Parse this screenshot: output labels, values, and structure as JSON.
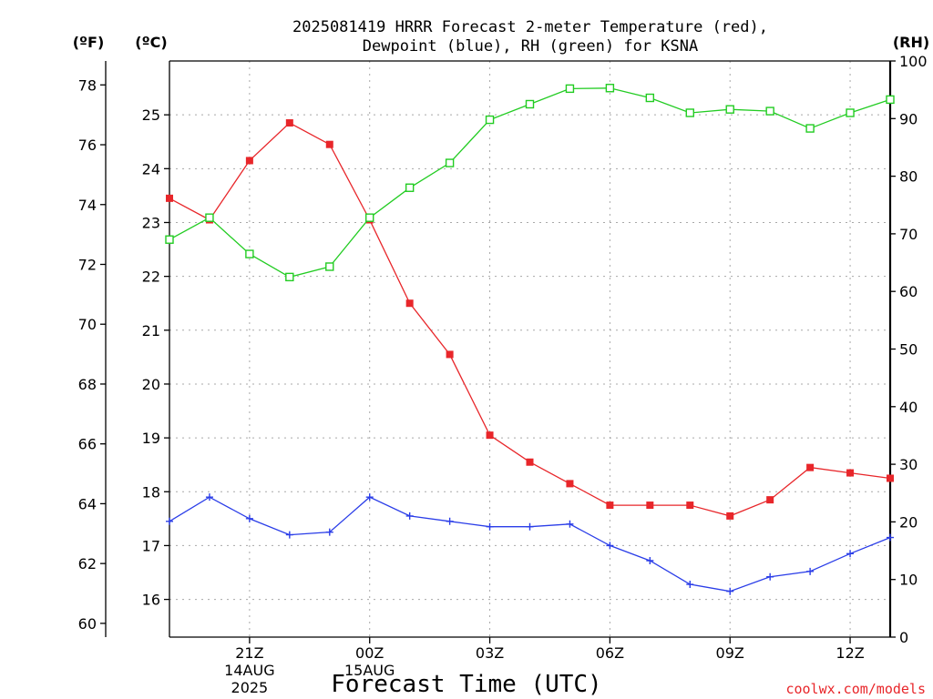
{
  "title_line1": "2025081419 HRRR Forecast 2-meter Temperature (red),",
  "title_line2": "Dewpoint (blue), RH (green) for KSNA",
  "units": {
    "fahrenheit": "(ºF)",
    "celsius": "(ºC)",
    "rh": "(RH)"
  },
  "xlabel": "Forecast Time (UTC)",
  "credit": "coolwx.com/models",
  "colors": {
    "temperature": "#e8262a",
    "dewpoint": "#2a3de8",
    "rh": "#22cc22",
    "axis": "#000000"
  },
  "chart_data": {
    "type": "line",
    "x": [
      "19Z",
      "20Z",
      "21Z",
      "22Z",
      "23Z",
      "00Z",
      "01Z",
      "02Z",
      "03Z",
      "04Z",
      "05Z",
      "06Z",
      "07Z",
      "08Z",
      "09Z",
      "10Z",
      "11Z",
      "12Z",
      "13Z"
    ],
    "x_ticks": [
      {
        "label": "21Z",
        "index": 2,
        "sub": [
          "14AUG",
          "2025"
        ]
      },
      {
        "label": "00Z",
        "index": 5,
        "sub": [
          "15AUG"
        ]
      },
      {
        "label": "03Z",
        "index": 8,
        "sub": []
      },
      {
        "label": "06Z",
        "index": 11,
        "sub": []
      },
      {
        "label": "09Z",
        "index": 14,
        "sub": []
      },
      {
        "label": "12Z",
        "index": 17,
        "sub": []
      }
    ],
    "ylim_celsius": [
      15.3,
      26.0
    ],
    "ylim_fahrenheit": [
      59.54,
      78.8
    ],
    "ylim_rh": [
      0,
      100
    ],
    "ticks_celsius": [
      16,
      17,
      18,
      19,
      20,
      21,
      22,
      23,
      24,
      25
    ],
    "ticks_fahrenheit": [
      60,
      62,
      64,
      66,
      68,
      70,
      72,
      74,
      76,
      78
    ],
    "ticks_rh": [
      0,
      10,
      20,
      30,
      40,
      50,
      60,
      70,
      80,
      90,
      100
    ],
    "grid": true,
    "series": [
      {
        "key": "temperature",
        "axis": "celsius",
        "marker": "square-filled",
        "values": [
          23.45,
          23.05,
          24.15,
          24.85,
          24.45,
          23.05,
          21.5,
          20.55,
          19.05,
          18.55,
          18.15,
          17.75,
          17.75,
          17.75,
          17.55,
          17.85,
          18.45,
          18.35,
          18.25
        ]
      },
      {
        "key": "dewpoint",
        "axis": "celsius",
        "marker": "plus",
        "values": [
          17.45,
          17.9,
          17.5,
          17.2,
          17.25,
          17.9,
          17.55,
          17.45,
          17.35,
          17.35,
          17.4,
          17.0,
          16.72,
          16.28,
          16.15,
          16.42,
          16.52,
          16.85,
          17.15
        ]
      },
      {
        "key": "rh",
        "axis": "rh",
        "marker": "square-open",
        "values": [
          69.0,
          72.8,
          66.5,
          62.5,
          64.3,
          72.8,
          78.0,
          82.3,
          89.8,
          92.5,
          95.2,
          95.3,
          93.6,
          91.0,
          91.6,
          91.3,
          88.3,
          91.0,
          93.3
        ]
      }
    ]
  }
}
